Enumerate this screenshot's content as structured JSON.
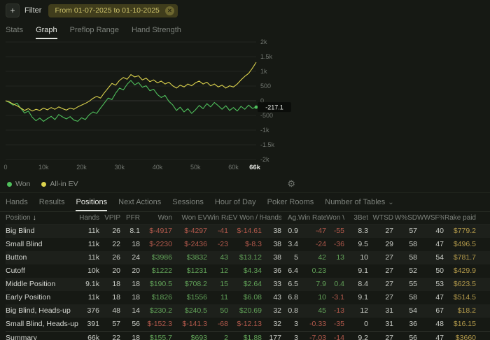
{
  "icons": {
    "plus": "+",
    "close": "✕",
    "gear": "⚙",
    "chevron_down": "⌄",
    "sort_desc": "↓"
  },
  "filter_bar": {
    "add_label": "Filter",
    "date_range": "From 01-07-2025 to 01-10-2025"
  },
  "tabs_primary": {
    "active": "Graph",
    "items": [
      {
        "label": "Stats"
      },
      {
        "label": "Graph"
      },
      {
        "label": "Preflop Range"
      },
      {
        "label": "Hand Strength"
      }
    ]
  },
  "tabs_secondary": {
    "active": "Positions",
    "items": [
      {
        "label": "Hands"
      },
      {
        "label": "Results"
      },
      {
        "label": "Positions"
      },
      {
        "label": "Next Actions"
      },
      {
        "label": "Sessions"
      },
      {
        "label": "Hour of Day"
      },
      {
        "label": "Poker Rooms"
      },
      {
        "label": "Number of Tables"
      }
    ]
  },
  "chart": {
    "type": "line",
    "xlim": [
      0,
      66000
    ],
    "ylim": [
      -2000,
      2000
    ],
    "x_ticks": [
      "0",
      "10k",
      "20k",
      "30k",
      "40k",
      "50k",
      "60k"
    ],
    "x_max_label": "66k",
    "y_grid_values": [
      2000,
      1500,
      1000,
      500,
      0,
      -500,
      -1000,
      -1500,
      -2000
    ],
    "y_ticks": [
      "2k",
      "1.5k",
      "1k",
      "500",
      "0",
      "-500",
      "-1k",
      "-1.5k",
      "-2k"
    ],
    "cursor_value": "-217.1",
    "series": [
      {
        "name": "Won",
        "color": "#4fc05c",
        "x_step": 1000,
        "values": [
          0,
          -60,
          -150,
          -80,
          -260,
          -420,
          -350,
          -560,
          -680,
          -590,
          -700,
          -610,
          -530,
          -640,
          -470,
          -550,
          -620,
          -540,
          -660,
          -700,
          -580,
          -640,
          -480,
          -380,
          -430,
          -250,
          -80,
          90,
          40,
          260,
          430,
          370,
          560,
          690,
          540,
          620,
          460,
          510,
          340,
          390,
          210,
          110,
          180,
          -20,
          -140,
          -330,
          -220,
          -380,
          -270,
          -430,
          -310,
          -160,
          -270,
          -100,
          -210,
          -60,
          -170,
          -290,
          -170,
          -330,
          -230,
          -350,
          -190,
          -290,
          -150,
          -260,
          -217.1
        ]
      },
      {
        "name": "All-in EV",
        "color": "#dcd34d",
        "x_step": 1000,
        "values": [
          0,
          -40,
          -110,
          -170,
          -250,
          -330,
          -270,
          -350,
          -290,
          -330,
          -250,
          -310,
          -230,
          -290,
          -210,
          -270,
          -320,
          -250,
          -290,
          -210,
          -150,
          -90,
          -20,
          80,
          150,
          90,
          270,
          430,
          590,
          530,
          690,
          790,
          730,
          890,
          810,
          850,
          710,
          770,
          650,
          710,
          610,
          670,
          570,
          630,
          510,
          430,
          530,
          470,
          570,
          510,
          610,
          670,
          570,
          630,
          510,
          570,
          470,
          530,
          430,
          510,
          470,
          570,
          710,
          830,
          930,
          1110,
          1310
        ]
      }
    ]
  },
  "table": {
    "sort_icon": "↓",
    "money_columns": [
      4,
      5,
      6,
      7,
      10,
      11
    ],
    "rake_column": 16,
    "columns": [
      "Position",
      "Hands",
      "VPIP",
      "PFR",
      "Won",
      "Won EV",
      "Win Rate ...",
      "EV Won / h",
      "Hands / h",
      "Ag.",
      "Win Rate, ...",
      "Won With...",
      "3Bet",
      "WTSD",
      "W%SD",
      "WWSF%",
      "Rake paid"
    ],
    "rows": [
      [
        "Big Blind",
        "11k",
        "26",
        "8.1",
        "$-4917",
        "$-4297",
        "-41",
        "$-14.61",
        "38",
        "0.9",
        "-47",
        "-55",
        "8.3",
        "27",
        "57",
        "40",
        "$779.2"
      ],
      [
        "Small Blind",
        "11k",
        "22",
        "18",
        "$-2230",
        "$-2436",
        "-23",
        "$-8.3",
        "38",
        "3.4",
        "-24",
        "-36",
        "9.5",
        "29",
        "58",
        "47",
        "$496.5"
      ],
      [
        "Button",
        "11k",
        "26",
        "24",
        "$3986",
        "$3832",
        "43",
        "$13.12",
        "38",
        "5",
        "42",
        "13",
        "10",
        "27",
        "58",
        "54",
        "$781.7"
      ],
      [
        "Cutoff",
        "10k",
        "20",
        "20",
        "$1222",
        "$1231",
        "12",
        "$4.34",
        "36",
        "6.4",
        "0.23",
        "",
        "9.1",
        "27",
        "52",
        "50",
        "$429.9"
      ],
      [
        "Middle Position",
        "9.1k",
        "18",
        "18",
        "$190.5",
        "$708.2",
        "15",
        "$2.64",
        "33",
        "6.5",
        "7.9",
        "0.4",
        "8.4",
        "27",
        "55",
        "53",
        "$623.5"
      ],
      [
        "Early Position",
        "11k",
        "18",
        "18",
        "$1826",
        "$1556",
        "11",
        "$6.08",
        "43",
        "6.8",
        "10",
        "-3.1",
        "9.1",
        "27",
        "58",
        "47",
        "$514.5"
      ],
      [
        "Big Blind, Heads-up",
        "376",
        "48",
        "14",
        "$230.2",
        "$240.5",
        "50",
        "$20.69",
        "32",
        "0.8",
        "45",
        "-13",
        "12",
        "31",
        "54",
        "67",
        "$18.2"
      ],
      [
        "Small Blind, Heads-up",
        "391",
        "57",
        "56",
        "$-152.3",
        "$-141.3",
        "-68",
        "$-12.13",
        "32",
        "3",
        "-0.33",
        "-35",
        "0",
        "31",
        "36",
        "48",
        "$16.15"
      ]
    ],
    "summary_row": [
      "Summary",
      "66k",
      "22",
      "18",
      "$155.7",
      "$693",
      "2",
      "$1.88",
      "177",
      "3",
      "-7.03",
      "-14",
      "9.2",
      "27",
      "56",
      "47",
      "$3660"
    ]
  }
}
